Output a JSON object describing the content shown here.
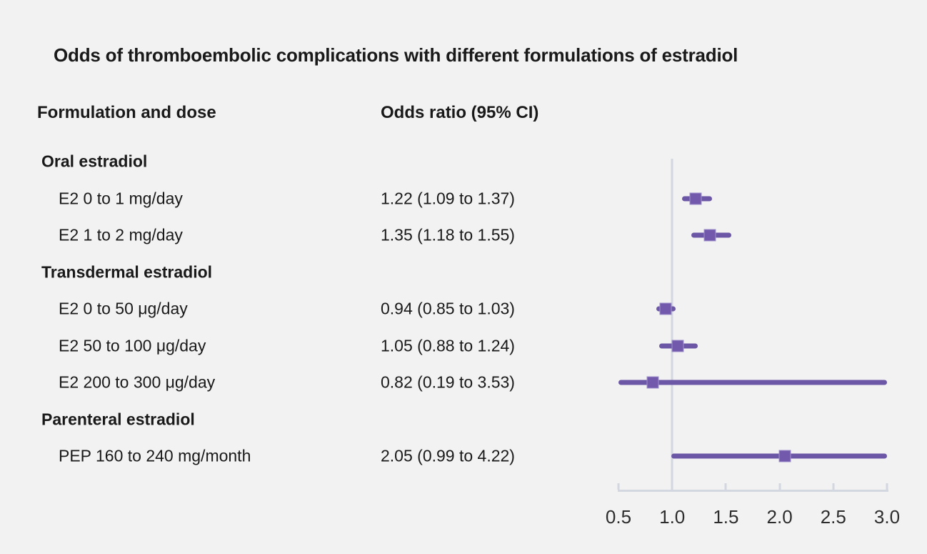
{
  "title": "Odds of thromboembolic complications with different formulations of estradiol",
  "columns": {
    "formulation": "Formulation and dose",
    "odds": "Odds ratio (95% CI)"
  },
  "colors": {
    "background": "#f2f2f2",
    "text": "#191919",
    "axis": "#d2d7e0",
    "purple_line": "#6c57a7",
    "purple_square": "#7359ab",
    "square_border": "#9f92cc"
  },
  "chart_data": {
    "type": "forest",
    "title": "Odds of thromboembolic complications with different formulations of estradiol",
    "xlim": [
      0.5,
      3.0
    ],
    "reference_line": 1.0,
    "tick_labels": [
      "0.5",
      "1.0",
      "1.5",
      "2.0",
      "2.5",
      "3.0"
    ],
    "tick_values": [
      0.5,
      1.0,
      1.5,
      2.0,
      2.5,
      3.0
    ],
    "legend_position": "none",
    "grid": false,
    "rows": [
      {
        "kind": "group",
        "label": "Oral estradiol"
      },
      {
        "kind": "item",
        "label": "E2 0 to 1 mg/day",
        "value_text": "1.22 (1.09 to 1.37)",
        "or": 1.22,
        "ci_low": 1.09,
        "ci_high": 1.37
      },
      {
        "kind": "item",
        "label": "E2 1 to 2 mg/day",
        "value_text": "1.35 (1.18 to 1.55)",
        "or": 1.35,
        "ci_low": 1.18,
        "ci_high": 1.55
      },
      {
        "kind": "group",
        "label": "Transdermal estradiol"
      },
      {
        "kind": "item",
        "label": "E2 0 to 50 μg/day",
        "value_text": "0.94 (0.85 to 1.03)",
        "or": 0.94,
        "ci_low": 0.85,
        "ci_high": 1.03
      },
      {
        "kind": "item",
        "label": "E2 50 to 100 μg/day",
        "value_text": "1.05 (0.88 to 1.24)",
        "or": 1.05,
        "ci_low": 0.88,
        "ci_high": 1.24
      },
      {
        "kind": "item",
        "label": "E2 200 to 300 μg/day",
        "value_text": "0.82 (0.19 to 3.53)",
        "or": 0.82,
        "ci_low": 0.19,
        "ci_high": 3.53
      },
      {
        "kind": "group",
        "label": "Parenteral estradiol"
      },
      {
        "kind": "item",
        "label": "PEP 160 to 240 mg/month",
        "value_text": "2.05 (0.99 to 4.22)",
        "or": 2.05,
        "ci_low": 0.99,
        "ci_high": 4.22
      }
    ]
  }
}
